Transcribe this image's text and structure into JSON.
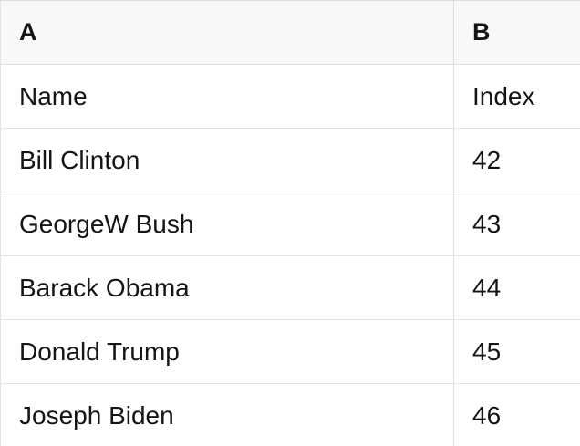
{
  "table": {
    "column_headers": [
      {
        "label": "A"
      },
      {
        "label": "B"
      }
    ],
    "rows": [
      {
        "a": "Name",
        "b": "Index"
      },
      {
        "a": "Bill Clinton",
        "b": "42"
      },
      {
        "a": "GeorgeW Bush",
        "b": "43"
      },
      {
        "a": "Barack Obama",
        "b": "44"
      },
      {
        "a": "Donald Trump",
        "b": "45"
      },
      {
        "a": "Joseph Biden",
        "b": "46"
      }
    ],
    "colors": {
      "header_background": "#f8f8f8",
      "row_background": "#ffffff",
      "border": "#e0e0e0",
      "text": "#151515"
    }
  }
}
